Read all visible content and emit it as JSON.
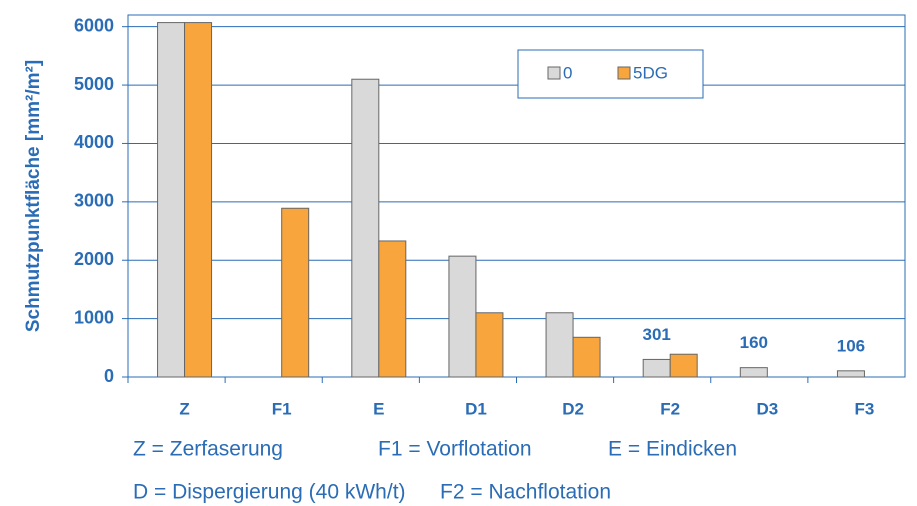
{
  "chart_data": {
    "type": "bar",
    "y_label": "Schmutzpunktfläche [mm²/m²]",
    "categories": [
      "Z",
      "F1",
      "E",
      "D1",
      "D2",
      "F2",
      "D3",
      "F3"
    ],
    "series": [
      {
        "name": "0",
        "color": "#d9d9d9",
        "values": [
          6070,
          null,
          5100,
          2070,
          1100,
          301,
          160,
          106
        ],
        "value_labels": [
          null,
          null,
          null,
          null,
          null,
          "301",
          "160",
          "106"
        ]
      },
      {
        "name": "5DG",
        "color": "#f7a53c",
        "values": [
          6070,
          2890,
          2330,
          1100,
          680,
          390,
          null,
          null
        ]
      }
    ],
    "ylim": [
      0,
      6200
    ],
    "yticks": [
      0,
      1000,
      2000,
      3000,
      4000,
      5000,
      6000
    ],
    "grid": true,
    "legend": "top-right",
    "notes": [
      [
        "Z = Zerfaserung",
        "F1 = Vorflotation",
        "E = Eindicken"
      ],
      [
        "D = Dispergierung (40 kWh/t)",
        "F2 = Nachflotation"
      ]
    ]
  }
}
